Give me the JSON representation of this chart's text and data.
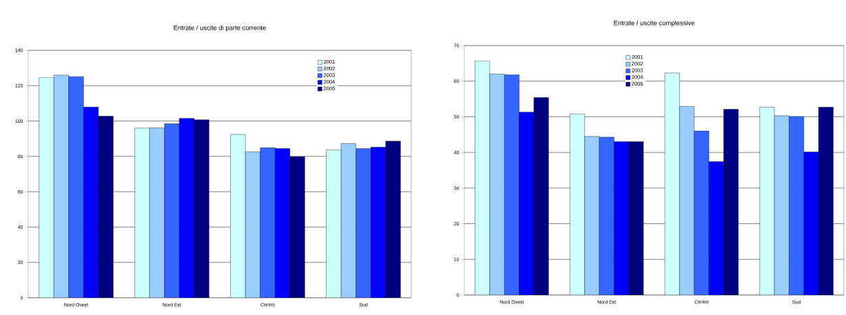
{
  "chart_data": [
    {
      "type": "bar",
      "title": "Entrate / uscite di parte corrente",
      "categories": [
        "Nord Ovest",
        "Nord Est",
        "Centro",
        "Sud"
      ],
      "series": [
        {
          "name": "2001",
          "color": "#ccffff",
          "values": [
            124.7,
            96.0,
            92.4,
            83.7
          ]
        },
        {
          "name": "2002",
          "color": "#99ccff",
          "values": [
            126.0,
            96.1,
            82.6,
            87.3
          ]
        },
        {
          "name": "2003",
          "color": "#3366ff",
          "values": [
            125.1,
            98.5,
            84.9,
            84.4
          ]
        },
        {
          "name": "2004",
          "color": "#0000ff",
          "values": [
            107.9,
            101.5,
            84.4,
            85.2
          ]
        },
        {
          "name": "2005",
          "color": "#000080",
          "values": [
            102.8,
            100.7,
            79.8,
            88.6
          ]
        }
      ],
      "ylim": [
        0,
        140
      ],
      "yticks": [
        0,
        20,
        40,
        60,
        80,
        100,
        120,
        140
      ],
      "grid": "y",
      "legend": "top right"
    },
    {
      "type": "bar",
      "title": "Entrate / uscite complessive",
      "categories": [
        "Nord Ovest",
        "Nord Est",
        "Centro",
        "Sud"
      ],
      "series": [
        {
          "name": "2001",
          "color": "#ccffff",
          "values": [
            65.7,
            50.8,
            62.3,
            52.7
          ]
        },
        {
          "name": "2002",
          "color": "#99ccff",
          "values": [
            62.0,
            44.5,
            52.9,
            50.3
          ]
        },
        {
          "name": "2003",
          "color": "#3366ff",
          "values": [
            61.8,
            44.3,
            46.0,
            50.1
          ]
        },
        {
          "name": "2004",
          "color": "#0000ff",
          "values": [
            51.3,
            43.0,
            37.4,
            40.1
          ]
        },
        {
          "name": "2005",
          "color": "#000080",
          "values": [
            55.4,
            43.0,
            52.1,
            52.7
          ]
        }
      ],
      "ylim": [
        0,
        70
      ],
      "yticks": [
        0,
        10,
        20,
        30,
        40,
        50,
        60,
        70
      ],
      "grid": "y",
      "legend": "top"
    }
  ]
}
